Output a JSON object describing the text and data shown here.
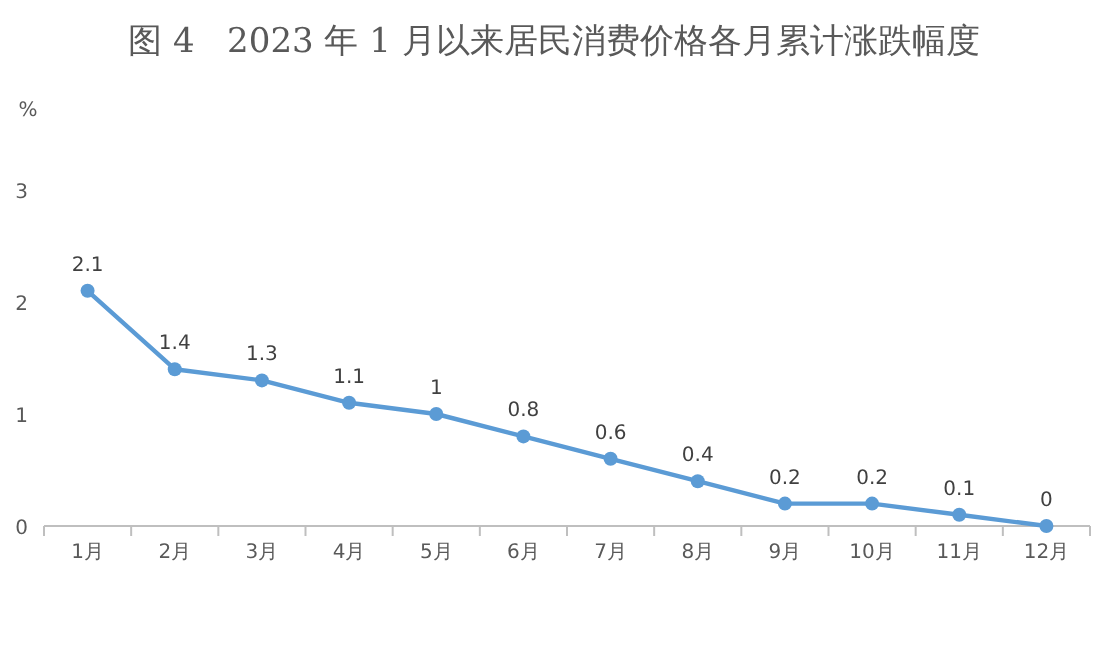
{
  "chart_data": {
    "type": "line",
    "title": "图 4   2023 年 1 月以来居民消费价格各月累计涨跌幅度",
    "ylabel": "%",
    "categories": [
      "1月",
      "2月",
      "3月",
      "4月",
      "5月",
      "6月",
      "7月",
      "8月",
      "9月",
      "10月",
      "11月",
      "12月"
    ],
    "values": [
      2.1,
      1.4,
      1.3,
      1.1,
      1,
      0.8,
      0.6,
      0.4,
      0.2,
      0.2,
      0.1,
      0
    ],
    "color": "#5b9bd5",
    "ylim": [
      0,
      3
    ],
    "yticks": [
      0,
      1,
      2,
      3
    ],
    "marker": "circle",
    "data_labels": true
  }
}
